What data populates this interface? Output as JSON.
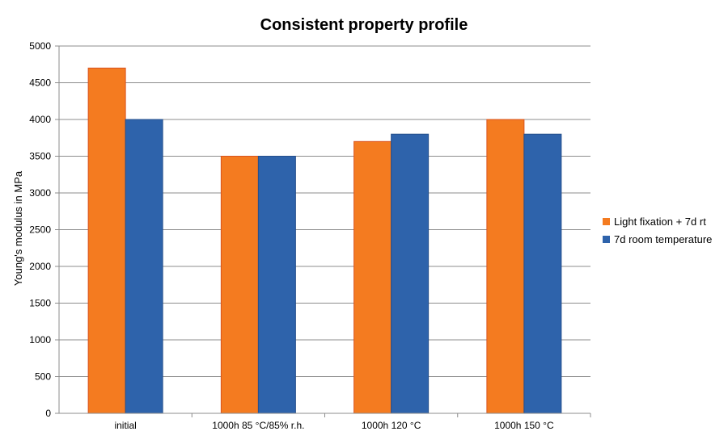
{
  "chart_data": {
    "type": "bar",
    "title": "Consistent property profile",
    "xlabel": "",
    "ylabel": "Young's modulus in MPa",
    "ylim": [
      0,
      5000
    ],
    "yticks": [
      0,
      500,
      1000,
      1500,
      2000,
      2500,
      3000,
      3500,
      4000,
      4500,
      5000
    ],
    "grid": true,
    "legend_position": "right",
    "categories": [
      "initial",
      "1000h 85 °C/85% r.h.",
      "1000h 120 °C",
      "1000h 150 °C"
    ],
    "series": [
      {
        "name": "Light fixation + 7d rt",
        "values": [
          4700,
          3500,
          3700,
          4000
        ],
        "color": "#f47b20"
      },
      {
        "name": "7d room temperature",
        "values": [
          4000,
          3500,
          3800,
          3800
        ],
        "color": "#2e63ab"
      }
    ]
  }
}
